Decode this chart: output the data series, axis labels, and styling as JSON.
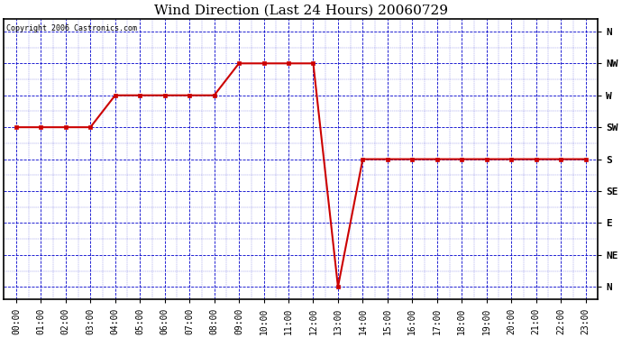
{
  "title": "Wind Direction (Last 24 Hours) 20060729",
  "copyright": "Copyright 2006 Castronics.com",
  "background_color": "#ffffff",
  "plot_bg_color": "#ffffff",
  "grid_color": "#0000cc",
  "line_color": "#cc0000",
  "marker_color": "#cc0000",
  "x_labels": [
    "00:00",
    "01:00",
    "02:00",
    "03:00",
    "04:00",
    "05:00",
    "06:00",
    "07:00",
    "08:00",
    "09:00",
    "10:00",
    "11:00",
    "12:00",
    "13:00",
    "14:00",
    "15:00",
    "16:00",
    "17:00",
    "18:00",
    "19:00",
    "20:00",
    "21:00",
    "22:00",
    "23:00"
  ],
  "y_labels_top_to_bottom": [
    "N",
    "NW",
    "W",
    "SW",
    "S",
    "SE",
    "E",
    "NE",
    "N"
  ],
  "data_x": [
    0,
    1,
    2,
    3,
    4,
    5,
    6,
    7,
    8,
    9,
    10,
    11,
    12,
    13,
    14,
    15,
    16,
    17,
    18,
    19,
    20,
    21,
    22,
    23
  ],
  "data_y": [
    3,
    3,
    3,
    3,
    2,
    2,
    2,
    2,
    2,
    1,
    1,
    1,
    1,
    8,
    4,
    4,
    4,
    4,
    4,
    4,
    4,
    4,
    4,
    4
  ]
}
